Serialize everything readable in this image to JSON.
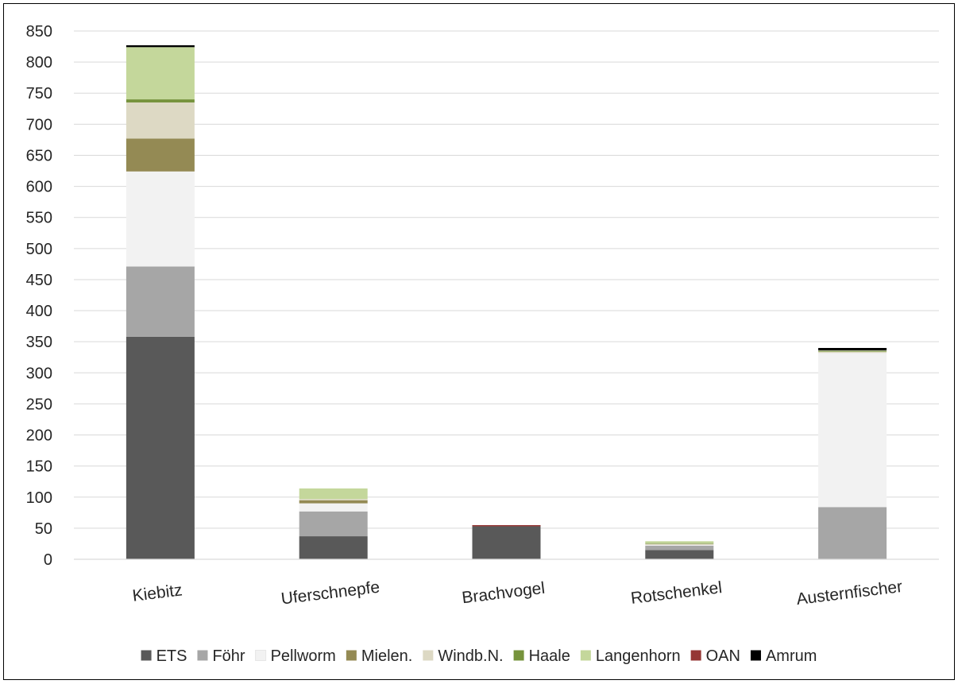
{
  "chart_data": {
    "type": "bar",
    "stacked": true,
    "categories": [
      "Kiebitz",
      "Uferschnepfe",
      "Brachvogel",
      "Rotschenkel",
      "Austernfischer"
    ],
    "ylim": [
      0,
      850
    ],
    "yticks": [
      0,
      50,
      100,
      150,
      200,
      250,
      300,
      350,
      400,
      450,
      500,
      550,
      600,
      650,
      700,
      750,
      800,
      850
    ],
    "grid": true,
    "legend_position": "bottom",
    "series": [
      {
        "name": "ETS",
        "color": "#595959",
        "values": [
          358,
          37,
          53,
          15,
          0
        ]
      },
      {
        "name": "Föhr",
        "color": "#a6a6a6",
        "values": [
          113,
          40,
          0,
          7,
          84
        ]
      },
      {
        "name": "Pellworm",
        "color": "#f2f2f2",
        "values": [
          153,
          13,
          0,
          1,
          248
        ]
      },
      {
        "name": "Mielen.",
        "color": "#948a54",
        "values": [
          53,
          5,
          0,
          0,
          0
        ]
      },
      {
        "name": "Windb.N.",
        "color": "#ddd9c4",
        "values": [
          58,
          2,
          0,
          2,
          2
        ]
      },
      {
        "name": "Haale",
        "color": "#76933c",
        "values": [
          5,
          0,
          0,
          1,
          1
        ]
      },
      {
        "name": "Langenhorn",
        "color": "#c4d79b",
        "values": [
          84,
          17,
          0,
          3,
          1
        ]
      },
      {
        "name": "OAN",
        "color": "#953735",
        "values": [
          0,
          0,
          2,
          0,
          0
        ]
      },
      {
        "name": "Amrum",
        "color": "#000000",
        "values": [
          3,
          0,
          0,
          0,
          4
        ]
      }
    ]
  }
}
